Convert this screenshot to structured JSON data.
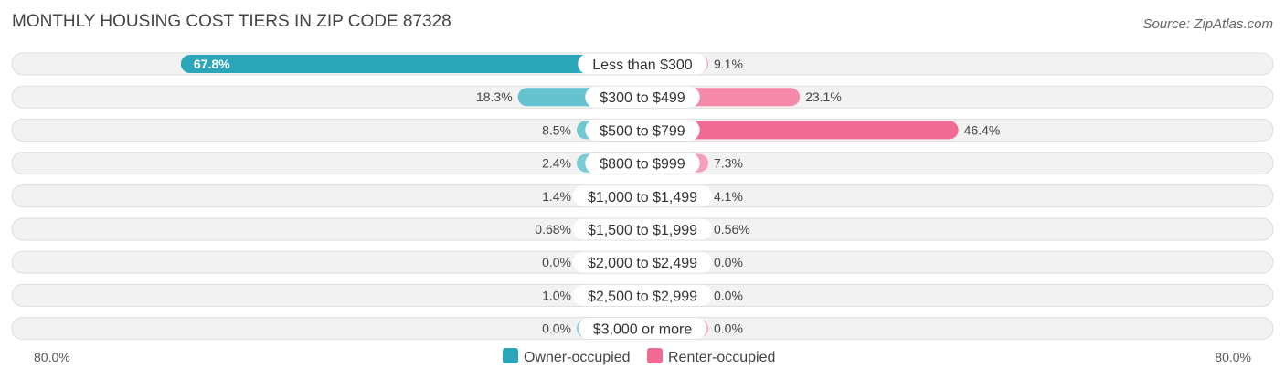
{
  "chart_data": {
    "type": "bar",
    "orientation": "horizontal-diverging",
    "title": "MONTHLY HOUSING COST TIERS IN ZIP CODE 87328",
    "source": "Source: ZipAtlas.com",
    "categories": [
      "Less than $300",
      "$300 to $499",
      "$500 to $799",
      "$800 to $999",
      "$1,000 to $1,499",
      "$1,500 to $1,999",
      "$2,000 to $2,499",
      "$2,500 to $2,999",
      "$3,000 or more"
    ],
    "series": [
      {
        "name": "Owner-occupied",
        "color": "#2ba6b8",
        "color_light": "#7ccdd6",
        "values": [
          67.8,
          18.3,
          8.5,
          2.4,
          1.4,
          0.68,
          0.0,
          1.0,
          0.0
        ],
        "labels": [
          "67.8%",
          "18.3%",
          "8.5%",
          "2.4%",
          "1.4%",
          "0.68%",
          "0.0%",
          "1.0%",
          "0.0%"
        ]
      },
      {
        "name": "Renter-occupied",
        "color": "#f06a93",
        "color_light": "#f7a7c0",
        "values": [
          9.1,
          23.1,
          46.4,
          7.3,
          4.1,
          0.56,
          0.0,
          0.0,
          0.0
        ],
        "labels": [
          "9.1%",
          "23.1%",
          "46.4%",
          "7.3%",
          "4.1%",
          "0.56%",
          "0.0%",
          "0.0%",
          "0.0%"
        ]
      }
    ],
    "xlim": [
      -80,
      80
    ],
    "axis_left_label": "80.0%",
    "axis_right_label": "80.0%",
    "legend_position": "bottom-center"
  }
}
